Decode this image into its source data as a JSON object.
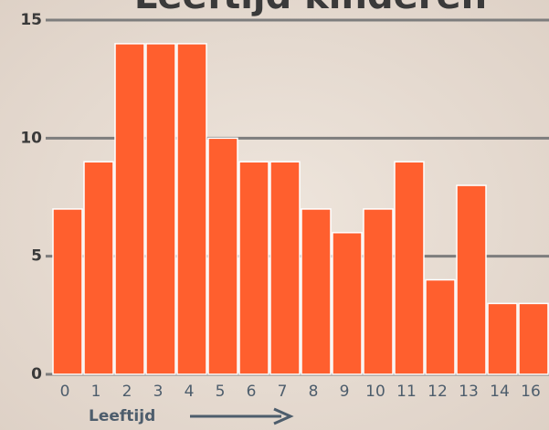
{
  "chart_data": {
    "type": "bar",
    "title": "Leeftijd kinderen",
    "x_label": "Leeftijd",
    "categories": [
      "0",
      "1",
      "2",
      "3",
      "4",
      "5",
      "6",
      "7",
      "8",
      "9",
      "10",
      "11",
      "12",
      "13",
      "14",
      "16"
    ],
    "values": [
      7,
      9,
      14,
      14,
      14,
      10,
      9,
      9,
      7,
      6,
      7,
      9,
      4,
      8,
      3,
      3
    ],
    "color": "#ff5f2e",
    "ylim": [
      0,
      15
    ],
    "yticks": [
      0,
      5,
      10,
      15
    ],
    "grid": true
  }
}
